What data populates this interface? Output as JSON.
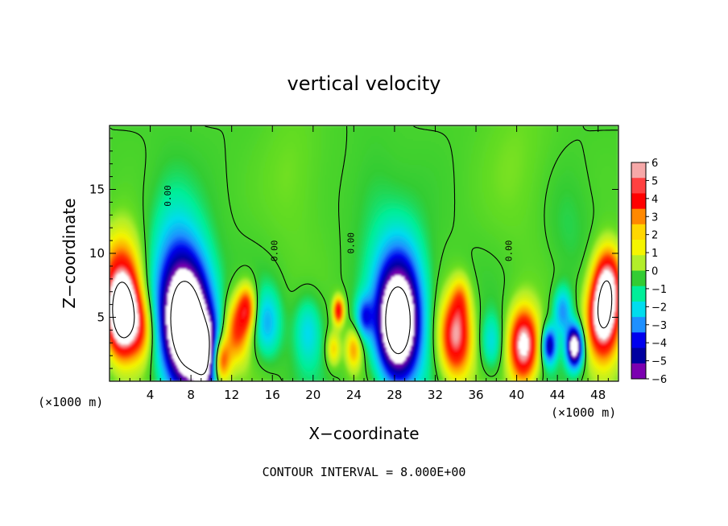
{
  "chart_data": {
    "type": "heatmap",
    "title": "vertical velocity",
    "xlabel": "X−coordinate",
    "ylabel": "Z−coordinate",
    "x_unit_left": "(×1000 m)",
    "x_unit_right": "(×1000 m)",
    "footer": "CONTOUR INTERVAL = 8.000E+00",
    "xlim": [
      0,
      50
    ],
    "ylim": [
      0,
      20
    ],
    "x_ticks": [
      4,
      8,
      12,
      16,
      20,
      24,
      28,
      32,
      36,
      40,
      44,
      48
    ],
    "y_ticks": [
      5,
      10,
      15
    ],
    "contour_label": "0.00",
    "colorbar": {
      "min": -6,
      "max": 6,
      "labels": [
        "6",
        "5",
        "4",
        "3",
        "2",
        "1",
        "0",
        "−1",
        "−2",
        "−3",
        "−4",
        "−5",
        "−6"
      ],
      "colors": [
        "#f6a8a8",
        "#ff4040",
        "#ff0000",
        "#ff8800",
        "#ffd700",
        "#f5f500",
        "#b2ee2a",
        "#33cc33",
        "#00ee99",
        "#00ddee",
        "#1e90ff",
        "#0000ee",
        "#0000a0",
        "#7b00b0"
      ]
    },
    "features": [
      {
        "x": 1.3,
        "z": 5.0,
        "w": 3.2,
        "value": 8.0
      },
      {
        "x": 1.2,
        "z": 7.5,
        "w": 4.5,
        "value": 5.0
      },
      {
        "x": 3.2,
        "z": 4.0,
        "w": 2.8,
        "value": 3.0
      },
      {
        "x": 7.0,
        "z": 6.5,
        "w": 6.0,
        "value": -5.0
      },
      {
        "x": 7.8,
        "z": 3.8,
        "w": 5.0,
        "value": -8.0
      },
      {
        "x": 9.8,
        "z": 1.8,
        "w": 3.0,
        "value": -6.0
      },
      {
        "x": 10.8,
        "z": 1.6,
        "w": 2.2,
        "value": 7.0
      },
      {
        "x": 12.5,
        "z": 4.0,
        "w": 2.8,
        "value": 4.0
      },
      {
        "x": 13.5,
        "z": 5.8,
        "w": 2.0,
        "value": 4.0
      },
      {
        "x": 15.5,
        "z": 4.5,
        "w": 3.0,
        "value": -2.5
      },
      {
        "x": 19.5,
        "z": 4.0,
        "w": 3.0,
        "value": -2.0
      },
      {
        "x": 22.5,
        "z": 5.5,
        "w": 1.2,
        "value": 5.0
      },
      {
        "x": 24.0,
        "z": 2.5,
        "w": 1.8,
        "value": 3.0
      },
      {
        "x": 22.0,
        "z": 2.5,
        "w": 1.5,
        "value": 2.5
      },
      {
        "x": 25.0,
        "z": 5.0,
        "w": 1.8,
        "value": -3.0
      },
      {
        "x": 28.5,
        "z": 7.0,
        "w": 5.5,
        "value": -4.0
      },
      {
        "x": 28.3,
        "z": 4.0,
        "w": 4.5,
        "value": -8.0
      },
      {
        "x": 34.0,
        "z": 3.5,
        "w": 3.5,
        "value": 6.0
      },
      {
        "x": 34.5,
        "z": 6.5,
        "w": 2.0,
        "value": 2.0
      },
      {
        "x": 37.5,
        "z": 3.0,
        "w": 2.5,
        "value": -2.0
      },
      {
        "x": 40.7,
        "z": 2.8,
        "w": 3.2,
        "value": 7.0
      },
      {
        "x": 43.2,
        "z": 2.8,
        "w": 1.6,
        "value": -5.0
      },
      {
        "x": 44.5,
        "z": 5.5,
        "w": 2.0,
        "value": -3.0
      },
      {
        "x": 45.7,
        "z": 2.7,
        "w": 1.8,
        "value": -8.0
      },
      {
        "x": 48.5,
        "z": 5.0,
        "w": 3.5,
        "value": 8.0
      },
      {
        "x": 49.0,
        "z": 8.0,
        "w": 3.0,
        "value": 5.0
      },
      {
        "x": 18.0,
        "z": 16.0,
        "w": 7.0,
        "value": 0.6
      },
      {
        "x": 40.0,
        "z": 17.0,
        "w": 8.0,
        "value": 0.6
      },
      {
        "x": 6.0,
        "z": 13.0,
        "w": 5.0,
        "value": -0.6
      },
      {
        "x": 26.0,
        "z": 14.0,
        "w": 5.0,
        "value": -0.5
      },
      {
        "x": 45.0,
        "z": 12.0,
        "w": 5.0,
        "value": -0.5
      }
    ]
  }
}
